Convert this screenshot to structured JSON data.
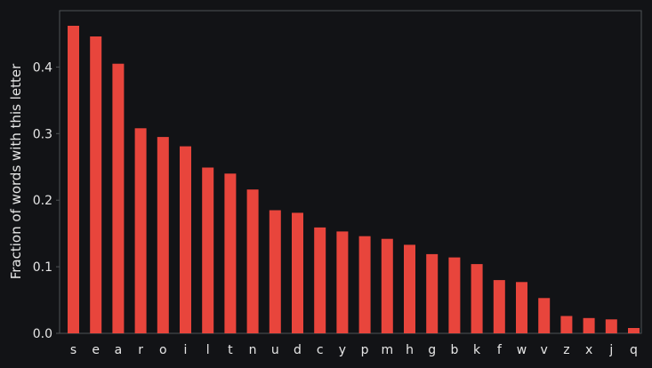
{
  "chart_data": {
    "type": "bar",
    "title": "",
    "xlabel": "",
    "ylabel": "Fraction of words with this letter",
    "categories": [
      "s",
      "e",
      "a",
      "r",
      "o",
      "i",
      "l",
      "t",
      "n",
      "u",
      "d",
      "c",
      "y",
      "p",
      "m",
      "h",
      "g",
      "b",
      "k",
      "f",
      "w",
      "v",
      "z",
      "x",
      "j",
      "q"
    ],
    "values": [
      0.462,
      0.446,
      0.405,
      0.308,
      0.295,
      0.281,
      0.249,
      0.24,
      0.216,
      0.185,
      0.181,
      0.159,
      0.153,
      0.146,
      0.142,
      0.133,
      0.119,
      0.114,
      0.104,
      0.08,
      0.077,
      0.053,
      0.026,
      0.023,
      0.021,
      0.008
    ],
    "ylim": [
      0,
      0.47
    ],
    "yticks": [
      0.0,
      0.1,
      0.2,
      0.3,
      0.4
    ],
    "ytick_labels": [
      "0.0",
      "0.1",
      "0.2",
      "0.3",
      "0.4"
    ],
    "grid": false,
    "bar_color": "#e8453c",
    "frame_color": "#4f5356",
    "text_color": "#e6e6e6",
    "background_color": "#121316"
  }
}
